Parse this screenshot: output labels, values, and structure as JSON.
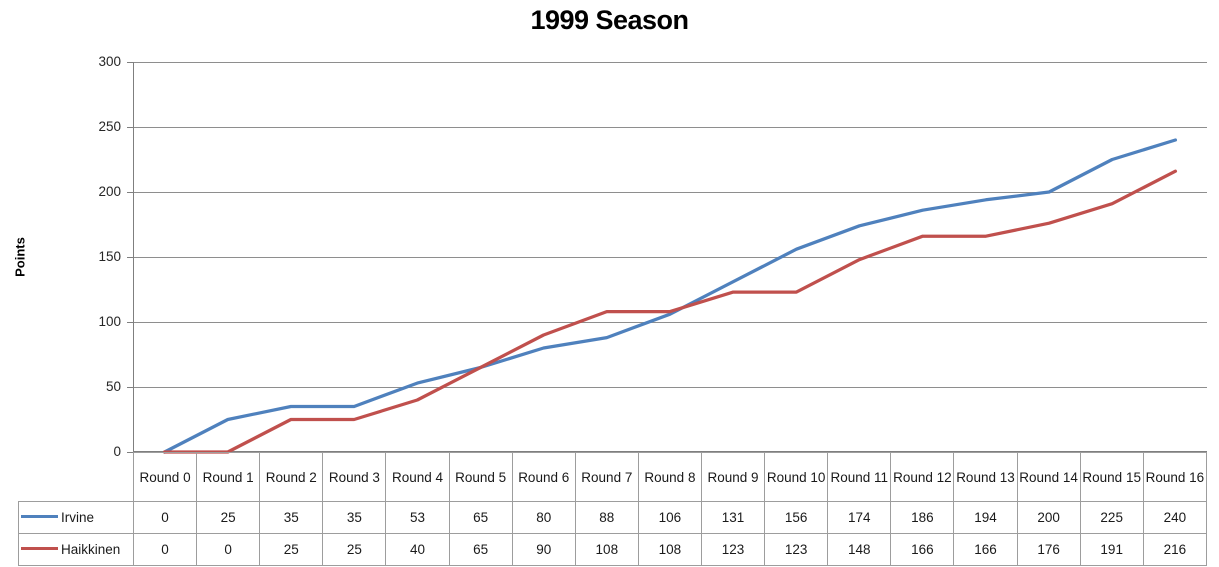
{
  "chart_data": {
    "type": "line",
    "title": "1999 Season",
    "xlabel": "",
    "ylabel": "Points",
    "categories": [
      "Round 0",
      "Round 1",
      "Round 2",
      "Round 3",
      "Round 4",
      "Round 5",
      "Round 6",
      "Round 7",
      "Round 8",
      "Round 9",
      "Round 10",
      "Round 11",
      "Round 12",
      "Round 13",
      "Round 14",
      "Round 15",
      "Round 16"
    ],
    "series": [
      {
        "name": "Irvine",
        "color": "#4F81BD",
        "values": [
          0,
          25,
          35,
          35,
          53,
          65,
          80,
          88,
          106,
          131,
          156,
          174,
          186,
          194,
          200,
          225,
          240
        ]
      },
      {
        "name": "Haikkinen",
        "color": "#C0504D",
        "values": [
          0,
          0,
          25,
          25,
          40,
          65,
          90,
          108,
          108,
          123,
          123,
          148,
          166,
          166,
          176,
          191,
          216
        ]
      }
    ],
    "ylim": [
      0,
      300
    ],
    "yticks": [
      0,
      50,
      100,
      150,
      200,
      250,
      300
    ],
    "grid": true,
    "legend_position": "data-table-left"
  },
  "colors": {
    "gridline": "#8e8e8e",
    "axis": "#7f7f7f",
    "table_border": "#9d9d9d",
    "title_text": "#000000",
    "tick_text": "#262626"
  }
}
